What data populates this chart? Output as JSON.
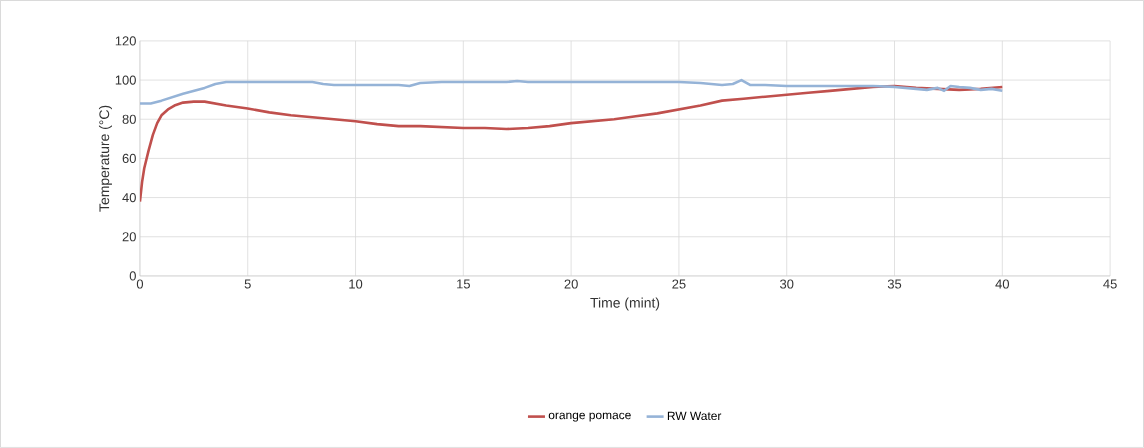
{
  "chart_data": {
    "type": "line",
    "xlabel": "Time (mint)",
    "ylabel": "Temperature (°C)",
    "xlim": [
      0,
      45
    ],
    "xticks": [
      0,
      5,
      10,
      15,
      20,
      25,
      30,
      35,
      40,
      45
    ],
    "ylim": [
      0,
      120
    ],
    "yticks": [
      0,
      20,
      40,
      60,
      80,
      100,
      120
    ],
    "grid": "y_and_x",
    "legend": "bottom",
    "marker": "none",
    "line_style": "solid",
    "series": [
      {
        "name": "orange pomace",
        "color": "#c0504d",
        "x": [
          0,
          0.1,
          0.2,
          0.4,
          0.6,
          0.8,
          1,
          1.3,
          1.6,
          2,
          2.5,
          3,
          3.5,
          4,
          5,
          6,
          7,
          8,
          9,
          10,
          11,
          12,
          13,
          14,
          15,
          16,
          17,
          18,
          19,
          20,
          21,
          22,
          23,
          24,
          25,
          26,
          27,
          28,
          29,
          30,
          31,
          32,
          33,
          34,
          35,
          36,
          37,
          38,
          39,
          40
        ],
        "values": [
          38,
          48,
          55,
          64,
          72,
          78,
          82,
          85,
          87,
          88.5,
          89,
          89,
          88,
          87,
          85.5,
          83.5,
          82,
          81,
          80,
          79,
          77.5,
          76.5,
          76.5,
          76,
          75.5,
          75.5,
          75,
          75.5,
          76.5,
          78,
          79,
          80,
          81.5,
          83,
          85,
          87,
          89.5,
          90.5,
          91.5,
          92.5,
          93.5,
          94.5,
          95.5,
          96.5,
          97,
          96,
          95.5,
          95,
          95.5,
          96.5
        ]
      },
      {
        "name": "RW Water",
        "color": "#95b3d7",
        "x": [
          0,
          0.5,
          1,
          2,
          3,
          3.5,
          4,
          5,
          6,
          7,
          8,
          8.5,
          9,
          10,
          11,
          12,
          12.5,
          13,
          14,
          15,
          16,
          17,
          17.5,
          18,
          19,
          20,
          21,
          22,
          23,
          24,
          25,
          26,
          27,
          27.5,
          27.9,
          28.3,
          29,
          30,
          31,
          32,
          33,
          34,
          35,
          36,
          36.5,
          37,
          37.3,
          37.6,
          38,
          38.5,
          39,
          39.5,
          40
        ],
        "values": [
          88,
          88,
          89.5,
          93,
          96,
          98,
          99,
          99,
          99,
          99,
          99,
          98,
          97.5,
          97.5,
          97.5,
          97.5,
          97,
          98.5,
          99,
          99,
          99,
          99,
          99.5,
          99,
          99,
          99,
          99,
          99,
          99,
          99,
          99,
          98.5,
          97.5,
          98,
          100,
          97.5,
          97.5,
          97,
          97,
          97,
          97,
          97,
          96.5,
          95.5,
          95,
          96,
          94.5,
          97,
          96.5,
          96,
          95,
          95.5,
          94.5
        ]
      }
    ]
  }
}
